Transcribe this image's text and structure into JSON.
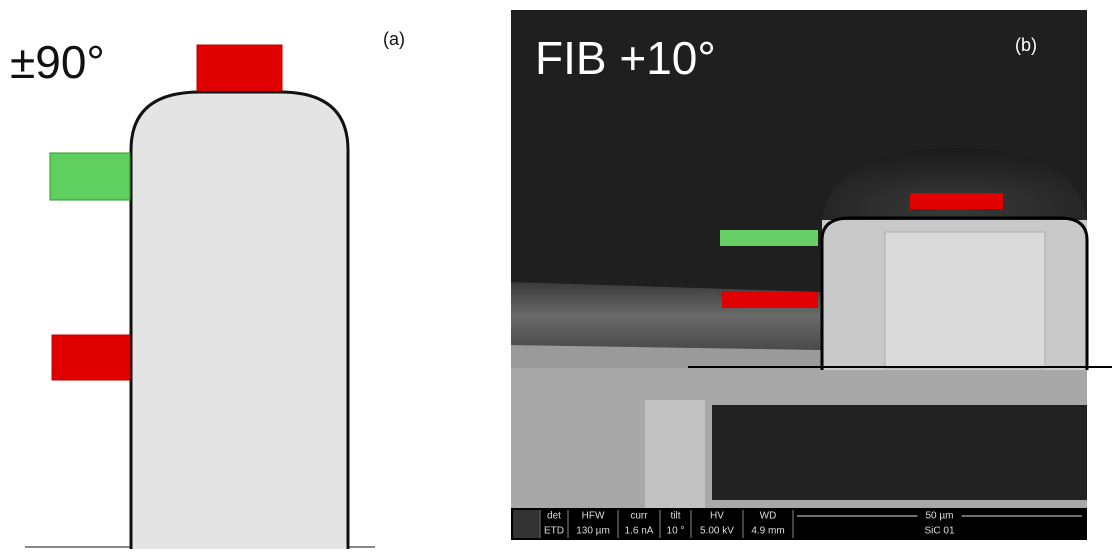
{
  "panel_a": {
    "angle_label": "±90°",
    "tag": "(a)"
  },
  "panel_b": {
    "angle_label": "FIB +10°",
    "tag": "(b)",
    "info_bar": {
      "fields": [
        {
          "name": "det",
          "value": "ETD"
        },
        {
          "name": "HFW",
          "value": "130 µm"
        },
        {
          "name": "curr",
          "value": "1.6 nA"
        },
        {
          "name": "tilt",
          "value": "10 °"
        },
        {
          "name": "HV",
          "value": "5.00 kV"
        },
        {
          "name": "WD",
          "value": "4.9 mm"
        }
      ],
      "scale_bar": "50 µm",
      "sample": "SiC 01"
    }
  }
}
